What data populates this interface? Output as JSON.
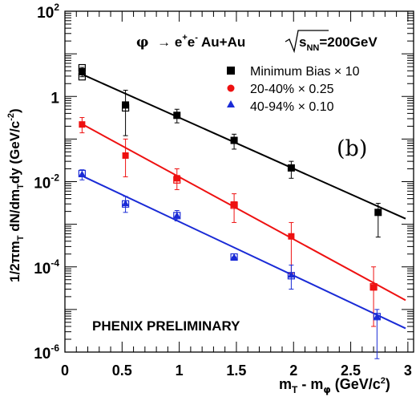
{
  "chart_data": {
    "type": "scatter",
    "x_scale": "linear",
    "y_scale": "log",
    "xlim": [
      0,
      3.05
    ],
    "ylim": [
      1e-06,
      100
    ],
    "x_ticks": [
      {
        "v": 0,
        "label": "0"
      },
      {
        "v": 0.5,
        "label": "0.5"
      },
      {
        "v": 1,
        "label": "1"
      },
      {
        "v": 1.5,
        "label": "1.5"
      },
      {
        "v": 2,
        "label": "2"
      },
      {
        "v": 2.5,
        "label": "2.5"
      },
      {
        "v": 3,
        "label": "3"
      }
    ],
    "y_ticks": [
      {
        "v": 100,
        "base": "10",
        "exp": "2"
      },
      {
        "v": 1,
        "base": "1",
        "exp": ""
      },
      {
        "v": 0.01,
        "base": "10",
        "exp": "-2"
      },
      {
        "v": 0.0001,
        "base": "10",
        "exp": "-4"
      },
      {
        "v": 1e-06,
        "base": "10",
        "exp": "-6"
      }
    ],
    "xlabel": {
      "main": "m",
      "sub1": "T",
      "mid": " - m",
      "sub2": "φ",
      "unit": " (GeV/c",
      "unit_sup": "2",
      "close": ")"
    },
    "ylabel": {
      "p1": "1/2πm",
      "s1": "T",
      "p2": " dN/dm",
      "s2": "T",
      "p3": "dy (GeV/c",
      "sup": "-2",
      "close": ")"
    },
    "reaction": {
      "phi": "φ",
      "arrow": "→ e",
      "ep": "+",
      "e2": "e",
      "em": "-",
      "system": " Au+Au ",
      "sqrt_s": "s",
      "nn": "NN",
      "energy": "=200GeV"
    },
    "panel_label": "(b)",
    "watermark": "PHENIX PRELIMINARY",
    "watermark_color": "#ff0000",
    "legend_position": "top-right",
    "series": [
      {
        "name": "Minimum Bias × 10",
        "color": "#000000",
        "marker": "square",
        "points": [
          {
            "x": 0.15,
            "y": 3.8,
            "err": [
              2.9,
              4.8
            ]
          },
          {
            "x": 0.53,
            "y": 0.63,
            "err": [
              0.12,
              1.4
            ]
          },
          {
            "x": 0.98,
            "y": 0.36,
            "err": [
              0.24,
              0.5
            ]
          },
          {
            "x": 1.48,
            "y": 0.093,
            "err": [
              0.058,
              0.13
            ]
          },
          {
            "x": 1.98,
            "y": 0.021,
            "err": [
              0.012,
              0.03
            ]
          },
          {
            "x": 2.74,
            "y": 0.0019,
            "err": [
              0.0005,
              0.0031
            ]
          }
        ],
        "open_points": [
          {
            "x": 0.15,
            "y": 4.7
          },
          {
            "x": 0.15,
            "y": 2.9
          },
          {
            "x": 0.53,
            "y": 0.54
          }
        ],
        "fit": [
          [
            0.13,
            3.5
          ],
          [
            2.98,
            0.00135
          ]
        ]
      },
      {
        "name": "20-40% × 0.25",
        "color": "#ee1111",
        "marker": "circle",
        "points": [
          {
            "x": 0.15,
            "y": 0.22,
            "err": [
              0.14,
              0.32
            ]
          },
          {
            "x": 0.53,
            "y": 0.041,
            "err": [
              0.013,
              0.1
            ]
          },
          {
            "x": 0.98,
            "y": 0.012,
            "err": [
              0.0065,
              0.02
            ]
          },
          {
            "x": 1.48,
            "y": 0.0029,
            "err": [
              0.0011,
              0.0052
            ]
          },
          {
            "x": 1.98,
            "y": 0.00052,
            "err": [
              7e-05,
              0.0011
            ]
          },
          {
            "x": 2.7,
            "y": 3.3e-05,
            "err": [
              4e-06,
              0.0001
            ]
          }
        ],
        "open_points": [
          {
            "x": 0.98,
            "y": 0.011
          },
          {
            "x": 1.48,
            "y": 0.0028
          },
          {
            "x": 2.7,
            "y": 3.4e-05
          }
        ],
        "fit": [
          [
            0.13,
            0.24
          ],
          [
            2.98,
            1.65e-05
          ]
        ]
      },
      {
        "name": "40-94% × 0.10",
        "color": "#1a2bd6",
        "marker": "triangle",
        "points": [
          {
            "x": 0.15,
            "y": 0.015,
            "err": [
              0.011,
              0.019
            ]
          },
          {
            "x": 0.53,
            "y": 0.0031,
            "err": [
              0.0019,
              0.0045
            ]
          },
          {
            "x": 0.98,
            "y": 0.0016,
            "err": [
              0.0012,
              0.0021
            ]
          },
          {
            "x": 1.48,
            "y": 0.00017,
            "err": [
              0.00017,
              0.00017
            ]
          },
          {
            "x": 1.98,
            "y": 6.5e-05,
            "err": [
              3e-05,
              0.00011
            ]
          },
          {
            "x": 2.73,
            "y": 6.8e-06,
            "err": [
              7e-07,
              1e-05
            ]
          }
        ],
        "open_points": [
          {
            "x": 0.15,
            "y": 0.0155
          },
          {
            "x": 0.53,
            "y": 0.003
          },
          {
            "x": 0.98,
            "y": 0.0016
          },
          {
            "x": 1.48,
            "y": 0.00017
          },
          {
            "x": 1.98,
            "y": 6.2e-05
          },
          {
            "x": 2.73,
            "y": 6.8e-06
          }
        ],
        "fit": [
          [
            0.13,
            0.0145
          ],
          [
            2.98,
            3.6e-06
          ]
        ]
      }
    ]
  }
}
